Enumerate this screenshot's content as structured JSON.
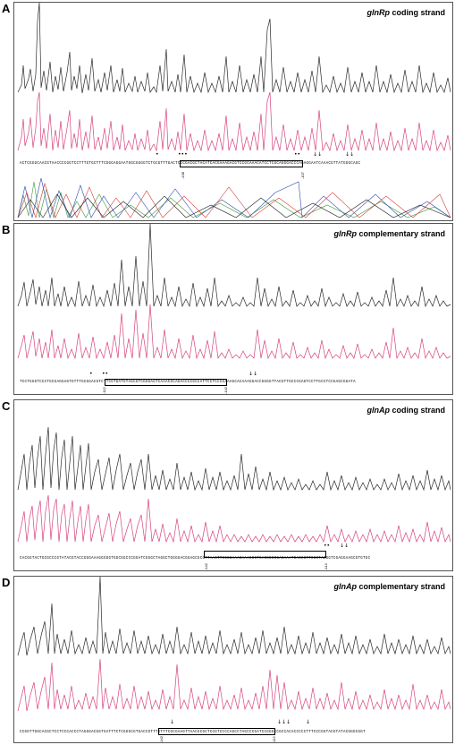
{
  "panels": [
    {
      "letter": "A",
      "gene": "glnRp",
      "strand": "coding strand",
      "sequence": "ACTCGGGCAACGTAACCCCGGTCCTTTGTGCTTTCGGGAGGAATGGCGGGGTCTGCGTTTGACTCCCGACGCTACATCACGAAAGACGTCCGCAAACATCCTCGCAGGGACCCAGAGGAATCAAACGTTATGGGCAGC",
      "positions": [
        "-138",
        "-107"
      ],
      "marks": [
        "•",
        "•••",
        "••",
        "↓↓",
        "↓↓"
      ]
    },
    {
      "letter": "B",
      "gene": "glnRp",
      "strand": "complementary strand",
      "sequence": "TCCTGGGTCCCTGCGAGGAGTGTTTGCGGACGTCTTCGTGATGTAGCGTCGGGAGTCAAACGCAGACCCCGCCATTCCTCCCGAAAGCACAAAGGACCGGGGTTACGTTGCCCGAGTCCTTGCCTCCGAGCGGATA",
      "positions": [
        "-112",
        "-142"
      ],
      "marks": [
        "•",
        "••",
        "↓↓"
      ]
    },
    {
      "letter": "C",
      "gene": "glnAp",
      "strand": "coding strand",
      "sequence": "CACGGTACTGCGCCCGTATACGTACCGGGAAAGGGGGTGGCGGCCCGGATCGGGCTAGGCTGGGGACGGAGCGCGTTAACTTCGCGAAACAAACGGTCACGCCCGAGAAATCACCGTTCCCTAGGGTCGAGGAAGCGTGTGC",
      "positions": [
        "-142",
        "-114"
      ],
      "marks": [
        "••",
        "↓↓"
      ]
    },
    {
      "letter": "D",
      "gene": "glnAp",
      "strand": "complementary strand",
      "sequence": "CCGGTTGGCACGCTCCTCCCACCCTAGGGACGGTGATTTCTCGGGCGTGACCGTTTGTTTCGCGAAGTTAACGCGCTCCGTCCCCAGCCTAGCCCGATCCGGGCCGCCACACCCCCTTTCCCGGTACGTATACGGGCGGT",
      "positions": [
        "-142",
        "-112"
      ],
      "marks": [
        "↓",
        "↓↓↓",
        "↓"
      ]
    }
  ],
  "colors": {
    "black_trace": "#2a2a2a",
    "pink_trace": "#d6437e",
    "base_a": "#3a9a3a",
    "base_c": "#2b4db0",
    "base_g": "#1a1a1a",
    "base_t": "#d53a3a"
  }
}
